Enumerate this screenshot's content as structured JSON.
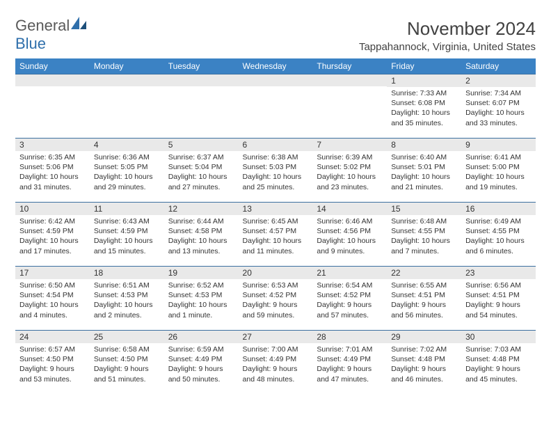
{
  "brand": {
    "general": "General",
    "blue": "Blue"
  },
  "header": {
    "month_title": "November 2024",
    "location": "Tappahannock, Virginia, United States"
  },
  "colors": {
    "header_bar": "#3b82c4",
    "daynum_bg": "#e9e9e9",
    "rule": "#3b6fa0",
    "brand_blue": "#2f6fab"
  },
  "weekdays": [
    "Sunday",
    "Monday",
    "Tuesday",
    "Wednesday",
    "Thursday",
    "Friday",
    "Saturday"
  ],
  "weeks": [
    [
      {
        "day": "",
        "sunrise": "",
        "sunset": "",
        "daylight": ""
      },
      {
        "day": "",
        "sunrise": "",
        "sunset": "",
        "daylight": ""
      },
      {
        "day": "",
        "sunrise": "",
        "sunset": "",
        "daylight": ""
      },
      {
        "day": "",
        "sunrise": "",
        "sunset": "",
        "daylight": ""
      },
      {
        "day": "",
        "sunrise": "",
        "sunset": "",
        "daylight": ""
      },
      {
        "day": "1",
        "sunrise": "Sunrise: 7:33 AM",
        "sunset": "Sunset: 6:08 PM",
        "daylight": "Daylight: 10 hours and 35 minutes."
      },
      {
        "day": "2",
        "sunrise": "Sunrise: 7:34 AM",
        "sunset": "Sunset: 6:07 PM",
        "daylight": "Daylight: 10 hours and 33 minutes."
      }
    ],
    [
      {
        "day": "3",
        "sunrise": "Sunrise: 6:35 AM",
        "sunset": "Sunset: 5:06 PM",
        "daylight": "Daylight: 10 hours and 31 minutes."
      },
      {
        "day": "4",
        "sunrise": "Sunrise: 6:36 AM",
        "sunset": "Sunset: 5:05 PM",
        "daylight": "Daylight: 10 hours and 29 minutes."
      },
      {
        "day": "5",
        "sunrise": "Sunrise: 6:37 AM",
        "sunset": "Sunset: 5:04 PM",
        "daylight": "Daylight: 10 hours and 27 minutes."
      },
      {
        "day": "6",
        "sunrise": "Sunrise: 6:38 AM",
        "sunset": "Sunset: 5:03 PM",
        "daylight": "Daylight: 10 hours and 25 minutes."
      },
      {
        "day": "7",
        "sunrise": "Sunrise: 6:39 AM",
        "sunset": "Sunset: 5:02 PM",
        "daylight": "Daylight: 10 hours and 23 minutes."
      },
      {
        "day": "8",
        "sunrise": "Sunrise: 6:40 AM",
        "sunset": "Sunset: 5:01 PM",
        "daylight": "Daylight: 10 hours and 21 minutes."
      },
      {
        "day": "9",
        "sunrise": "Sunrise: 6:41 AM",
        "sunset": "Sunset: 5:00 PM",
        "daylight": "Daylight: 10 hours and 19 minutes."
      }
    ],
    [
      {
        "day": "10",
        "sunrise": "Sunrise: 6:42 AM",
        "sunset": "Sunset: 4:59 PM",
        "daylight": "Daylight: 10 hours and 17 minutes."
      },
      {
        "day": "11",
        "sunrise": "Sunrise: 6:43 AM",
        "sunset": "Sunset: 4:59 PM",
        "daylight": "Daylight: 10 hours and 15 minutes."
      },
      {
        "day": "12",
        "sunrise": "Sunrise: 6:44 AM",
        "sunset": "Sunset: 4:58 PM",
        "daylight": "Daylight: 10 hours and 13 minutes."
      },
      {
        "day": "13",
        "sunrise": "Sunrise: 6:45 AM",
        "sunset": "Sunset: 4:57 PM",
        "daylight": "Daylight: 10 hours and 11 minutes."
      },
      {
        "day": "14",
        "sunrise": "Sunrise: 6:46 AM",
        "sunset": "Sunset: 4:56 PM",
        "daylight": "Daylight: 10 hours and 9 minutes."
      },
      {
        "day": "15",
        "sunrise": "Sunrise: 6:48 AM",
        "sunset": "Sunset: 4:55 PM",
        "daylight": "Daylight: 10 hours and 7 minutes."
      },
      {
        "day": "16",
        "sunrise": "Sunrise: 6:49 AM",
        "sunset": "Sunset: 4:55 PM",
        "daylight": "Daylight: 10 hours and 6 minutes."
      }
    ],
    [
      {
        "day": "17",
        "sunrise": "Sunrise: 6:50 AM",
        "sunset": "Sunset: 4:54 PM",
        "daylight": "Daylight: 10 hours and 4 minutes."
      },
      {
        "day": "18",
        "sunrise": "Sunrise: 6:51 AM",
        "sunset": "Sunset: 4:53 PM",
        "daylight": "Daylight: 10 hours and 2 minutes."
      },
      {
        "day": "19",
        "sunrise": "Sunrise: 6:52 AM",
        "sunset": "Sunset: 4:53 PM",
        "daylight": "Daylight: 10 hours and 1 minute."
      },
      {
        "day": "20",
        "sunrise": "Sunrise: 6:53 AM",
        "sunset": "Sunset: 4:52 PM",
        "daylight": "Daylight: 9 hours and 59 minutes."
      },
      {
        "day": "21",
        "sunrise": "Sunrise: 6:54 AM",
        "sunset": "Sunset: 4:52 PM",
        "daylight": "Daylight: 9 hours and 57 minutes."
      },
      {
        "day": "22",
        "sunrise": "Sunrise: 6:55 AM",
        "sunset": "Sunset: 4:51 PM",
        "daylight": "Daylight: 9 hours and 56 minutes."
      },
      {
        "day": "23",
        "sunrise": "Sunrise: 6:56 AM",
        "sunset": "Sunset: 4:51 PM",
        "daylight": "Daylight: 9 hours and 54 minutes."
      }
    ],
    [
      {
        "day": "24",
        "sunrise": "Sunrise: 6:57 AM",
        "sunset": "Sunset: 4:50 PM",
        "daylight": "Daylight: 9 hours and 53 minutes."
      },
      {
        "day": "25",
        "sunrise": "Sunrise: 6:58 AM",
        "sunset": "Sunset: 4:50 PM",
        "daylight": "Daylight: 9 hours and 51 minutes."
      },
      {
        "day": "26",
        "sunrise": "Sunrise: 6:59 AM",
        "sunset": "Sunset: 4:49 PM",
        "daylight": "Daylight: 9 hours and 50 minutes."
      },
      {
        "day": "27",
        "sunrise": "Sunrise: 7:00 AM",
        "sunset": "Sunset: 4:49 PM",
        "daylight": "Daylight: 9 hours and 48 minutes."
      },
      {
        "day": "28",
        "sunrise": "Sunrise: 7:01 AM",
        "sunset": "Sunset: 4:49 PM",
        "daylight": "Daylight: 9 hours and 47 minutes."
      },
      {
        "day": "29",
        "sunrise": "Sunrise: 7:02 AM",
        "sunset": "Sunset: 4:48 PM",
        "daylight": "Daylight: 9 hours and 46 minutes."
      },
      {
        "day": "30",
        "sunrise": "Sunrise: 7:03 AM",
        "sunset": "Sunset: 4:48 PM",
        "daylight": "Daylight: 9 hours and 45 minutes."
      }
    ]
  ]
}
